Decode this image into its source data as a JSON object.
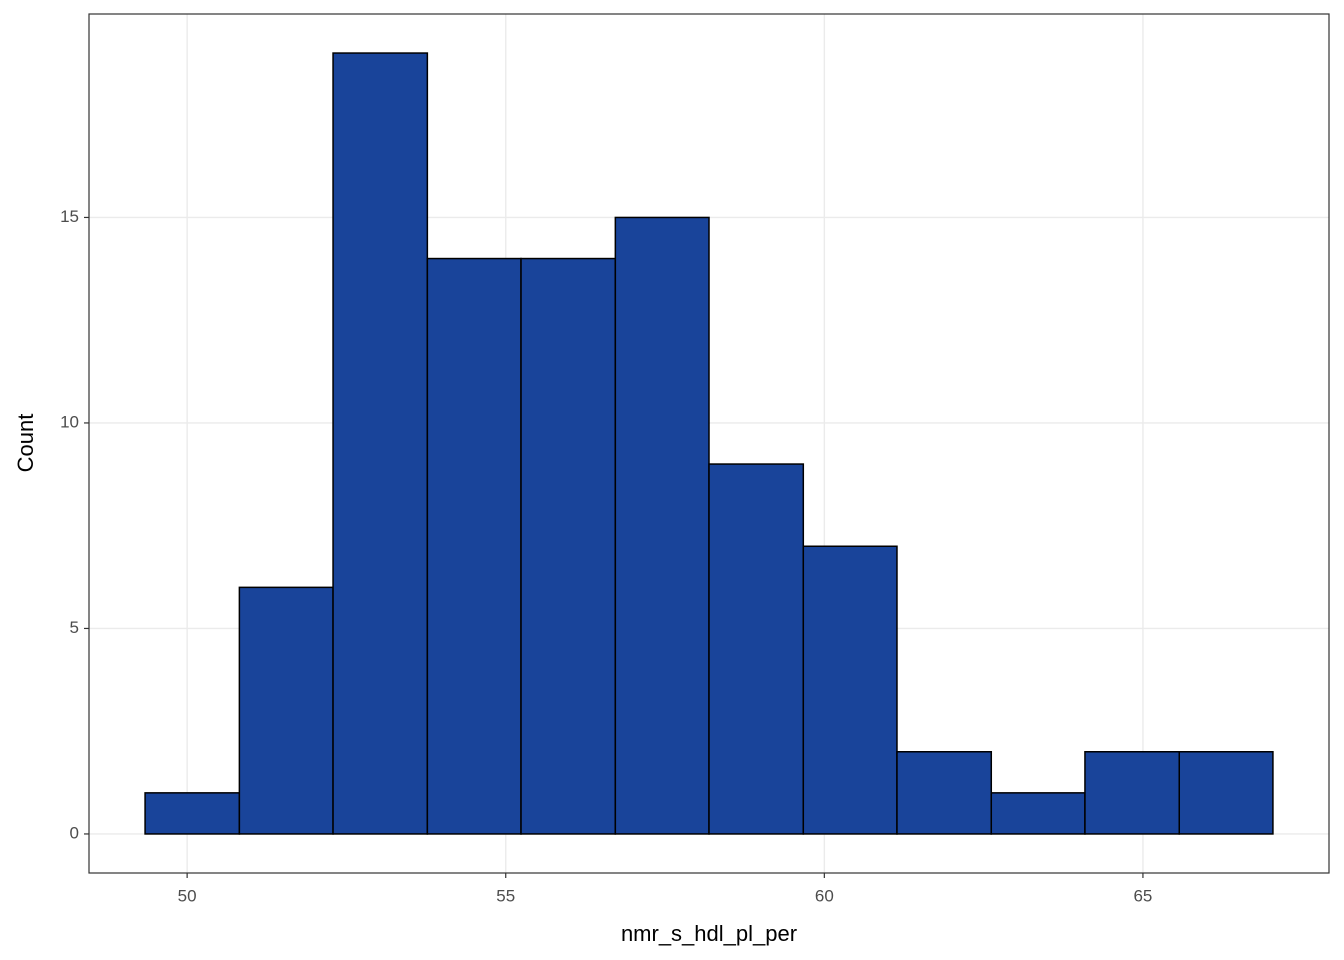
{
  "chart_data": {
    "type": "histogram",
    "x_label": "nmr_s_hdl_pl_per",
    "y_label": "Count",
    "bins": [
      49.34,
      50.82,
      52.29,
      53.77,
      55.24,
      56.72,
      58.19,
      59.67,
      61.14,
      62.62,
      64.09,
      65.57,
      67.04
    ],
    "values": [
      1,
      6,
      19,
      14,
      14,
      15,
      9,
      7,
      2,
      1,
      2,
      2
    ],
    "color": "#19449a",
    "xlim": [
      48.46,
      67.92
    ],
    "ylim": [
      -0.95,
      19.95
    ],
    "xticks": [
      50,
      55,
      60,
      65
    ],
    "yticks": [
      0,
      5,
      10,
      15
    ],
    "grid": true
  }
}
